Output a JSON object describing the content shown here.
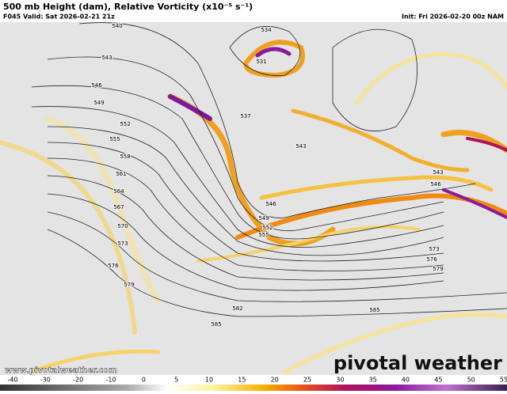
{
  "header": {
    "title": "500 mb Height (dam), Relative Vorticity (x10⁻⁵ s⁻¹)",
    "valid": "F045 Valid: Sat 2026-02-21 21z",
    "init": "Init: Fri 2026-02-20 00z NAM"
  },
  "contour_labels": [
    "540",
    "543",
    "546",
    "549",
    "552",
    "555",
    "558",
    "561",
    "564",
    "567",
    "570",
    "573",
    "576",
    "579",
    "582",
    "585",
    "534",
    "531",
    "537",
    "543",
    "546",
    "549",
    "552",
    "555",
    "585",
    "579",
    "576",
    "573",
    "543",
    "546"
  ],
  "colorbar_ticks": [
    -40,
    -30,
    -20,
    -10,
    0,
    5,
    10,
    15,
    20,
    25,
    30,
    35,
    40,
    45,
    50,
    55
  ],
  "footer": {
    "website": "www.pivotalweather.com",
    "brand": "pivotal weather"
  }
}
